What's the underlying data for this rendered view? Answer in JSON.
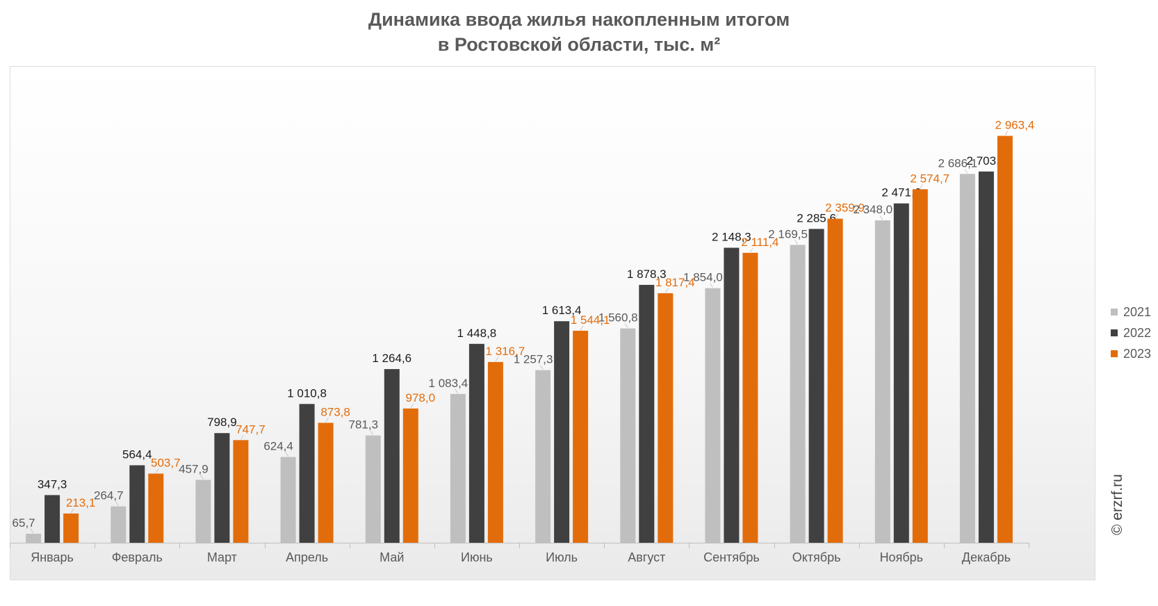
{
  "chart_data": {
    "type": "bar",
    "title_lines": [
      "Динамика ввода жилья накопленным итогом",
      "в Ростовской области, тыс. м²"
    ],
    "categories": [
      "Январь",
      "Февраль",
      "Март",
      "Апрель",
      "Май",
      "Июнь",
      "Июль",
      "Август",
      "Сентябрь",
      "Октябрь",
      "Ноябрь",
      "Декабрь"
    ],
    "series": [
      {
        "name": "2021",
        "color": "#bfbfbf",
        "label_color": "#595959",
        "values": [
          65.7,
          264.7,
          457.9,
          624.4,
          781.3,
          1083.4,
          1257.3,
          1560.8,
          1854.0,
          2169.5,
          2348.0,
          2686.1
        ],
        "labels": [
          "65,7",
          "264,7",
          "457,9",
          "624,4",
          "781,3",
          "1 083,4",
          "1 257,3",
          "1 560,8",
          "1 854,0",
          "2 169,5",
          "2 348,0",
          "2 686,1"
        ]
      },
      {
        "name": "2022",
        "color": "#404040",
        "label_color": "#1a1a1a",
        "values": [
          347.3,
          564.4,
          798.9,
          1010.8,
          1264.6,
          1448.8,
          1613.4,
          1878.3,
          2148.3,
          2285.6,
          2471.6,
          2703.7
        ],
        "labels": [
          "347,3",
          "564,4",
          "798,9",
          "1 010,8",
          "1 264,6",
          "1 448,8",
          "1 613,4",
          "1 878,3",
          "2 148,3",
          "2 285,6",
          "2 471,6",
          "2 703,7"
        ]
      },
      {
        "name": "2023",
        "color": "#e36c0a",
        "label_color": "#e36c0a",
        "values": [
          213.1,
          503.7,
          747.7,
          873.8,
          978.0,
          1316.7,
          1544.1,
          1817.4,
          2111.4,
          2359.9,
          2574.7,
          2963.4
        ],
        "labels": [
          "213,1",
          "503,7",
          "747,7",
          "873,8",
          "978,0",
          "1 316,7",
          "1 544,1",
          "1 817,4",
          "2 111,4",
          "2 359,9",
          "2 574,7",
          "2 963,4"
        ]
      }
    ],
    "ylim": [
      0,
      3400
    ],
    "grid": false,
    "legend_position": "right"
  },
  "watermark": "© erzrf.ru"
}
